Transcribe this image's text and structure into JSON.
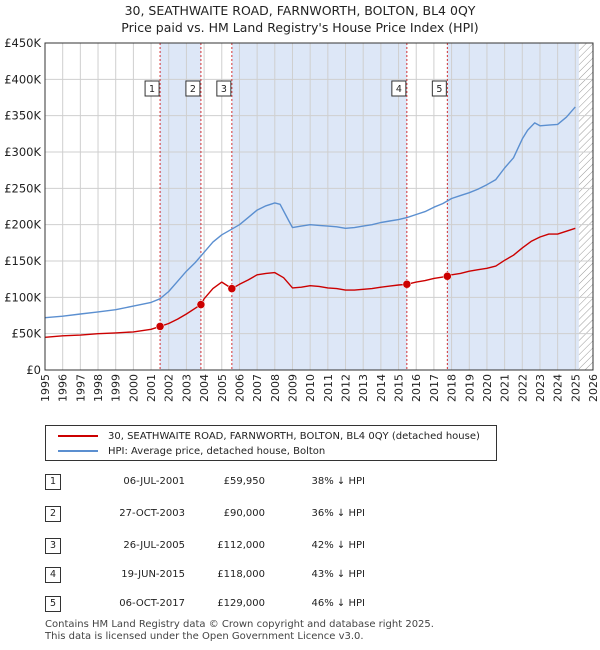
{
  "title_line1": "30, SEATHWAITE ROAD, FARNWORTH, BOLTON, BL4 0QY",
  "title_line2": "Price paid vs. HM Land Registry's House Price Index (HPI)",
  "colors": {
    "property": "#cc0000",
    "hpi": "#5b8fd0",
    "shade": "#dde7f7",
    "grid": "#cfcfcf",
    "marker_line": "#cc0000"
  },
  "chart_data": {
    "type": "line",
    "xlim": [
      1995,
      2026
    ],
    "ylim": [
      0,
      450000
    ],
    "yticks": [
      0,
      50000,
      100000,
      150000,
      200000,
      250000,
      300000,
      350000,
      400000,
      450000
    ],
    "ytick_labels": [
      "£0",
      "£50K",
      "£100K",
      "£150K",
      "£200K",
      "£250K",
      "£300K",
      "£350K",
      "£400K",
      "£450K"
    ],
    "xticks": [
      1995,
      1996,
      1997,
      1998,
      1999,
      2000,
      2001,
      2002,
      2003,
      2004,
      2005,
      2006,
      2007,
      2008,
      2009,
      2010,
      2011,
      2012,
      2013,
      2014,
      2015,
      2016,
      2017,
      2018,
      2019,
      2020,
      2021,
      2022,
      2023,
      2024,
      2025,
      2026
    ],
    "shaded_ranges": [
      [
        2001.51,
        2003.82
      ],
      [
        2005.57,
        2015.47
      ],
      [
        2017.76,
        2025.2
      ]
    ],
    "hatch_from": 2025.2,
    "series": [
      {
        "name": "30, SEATHWAITE ROAD, FARNWORTH, BOLTON, BL4 0QY (detached house)",
        "color": "#cc0000",
        "x": [
          1995,
          1996,
          1997,
          1998,
          1999,
          2000,
          2001,
          2001.51,
          2002,
          2002.5,
          2003,
          2003.82,
          2004,
          2004.5,
          2005,
          2005.57,
          2006,
          2006.5,
          2007,
          2007.5,
          2008,
          2008.5,
          2009,
          2009.5,
          2010,
          2010.5,
          2011,
          2011.5,
          2012,
          2012.5,
          2013,
          2013.5,
          2014,
          2014.5,
          2015,
          2015.47,
          2016,
          2016.5,
          2017,
          2017.76,
          2018,
          2018.5,
          2019,
          2019.5,
          2020,
          2020.5,
          2021,
          2021.5,
          2022,
          2022.5,
          2023,
          2023.5,
          2024,
          2024.5,
          2025
        ],
        "values": [
          45000,
          47000,
          48000,
          50000,
          51000,
          52500,
          56000,
          59950,
          64000,
          70000,
          77000,
          90000,
          98000,
          112000,
          121000,
          112000,
          118000,
          124000,
          131000,
          133000,
          134000,
          127000,
          113000,
          114000,
          116000,
          115000,
          113000,
          112000,
          110000,
          110000,
          111000,
          112000,
          114000,
          115500,
          117000,
          118000,
          121000,
          123000,
          126000,
          129000,
          131000,
          133000,
          136000,
          138000,
          140000,
          143000,
          151000,
          158000,
          168000,
          177000,
          183000,
          187000,
          187000,
          191000,
          195000
        ]
      },
      {
        "name": "HPI: Average price, detached house, Bolton",
        "color": "#5b8fd0",
        "x": [
          1995,
          1996,
          1997,
          1998,
          1999,
          2000,
          2001,
          2001.5,
          2002,
          2002.5,
          2003,
          2003.5,
          2004,
          2004.5,
          2005,
          2005.5,
          2006,
          2006.5,
          2007,
          2007.5,
          2008,
          2008.3,
          2008.8,
          2009,
          2009.5,
          2010,
          2010.5,
          2011,
          2011.5,
          2012,
          2012.5,
          2013,
          2013.5,
          2014,
          2014.5,
          2015,
          2015.5,
          2016,
          2016.5,
          2017,
          2017.5,
          2018,
          2018.5,
          2019,
          2019.5,
          2020,
          2020.5,
          2021,
          2021.5,
          2022,
          2022.3,
          2022.7,
          2023,
          2023.5,
          2024,
          2024.5,
          2025
        ],
        "values": [
          72000,
          74000,
          77000,
          80000,
          83000,
          88000,
          93000,
          98000,
          108000,
          122000,
          136000,
          148000,
          162000,
          176000,
          186000,
          193000,
          200000,
          210000,
          220000,
          226000,
          230000,
          228000,
          205000,
          196000,
          198000,
          200000,
          199000,
          198000,
          197000,
          195000,
          196000,
          198000,
          200000,
          203000,
          205000,
          207000,
          210000,
          214000,
          218000,
          224000,
          229000,
          236000,
          240000,
          244000,
          249000,
          255000,
          262000,
          278000,
          292000,
          318000,
          330000,
          340000,
          336000,
          337000,
          338000,
          348000,
          362000
        ]
      }
    ],
    "sales": [
      {
        "label": "1",
        "x": 2001.51,
        "value": 59950
      },
      {
        "label": "2",
        "x": 2003.82,
        "value": 90000
      },
      {
        "label": "3",
        "x": 2005.57,
        "value": 112000
      },
      {
        "label": "4",
        "x": 2015.47,
        "value": 118000
      },
      {
        "label": "5",
        "x": 2017.76,
        "value": 129000
      }
    ]
  },
  "legend": {
    "property_label": "30, SEATHWAITE ROAD, FARNWORTH, BOLTON, BL4 0QY (detached house)",
    "hpi_label": "HPI: Average price, detached house, Bolton"
  },
  "transactions": [
    {
      "num": "1",
      "date": "06-JUL-2001",
      "price": "£59,950",
      "hpi": "38% ↓ HPI"
    },
    {
      "num": "2",
      "date": "27-OCT-2003",
      "price": "£90,000",
      "hpi": "36% ↓ HPI"
    },
    {
      "num": "3",
      "date": "26-JUL-2005",
      "price": "£112,000",
      "hpi": "42% ↓ HPI"
    },
    {
      "num": "4",
      "date": "19-JUN-2015",
      "price": "£118,000",
      "hpi": "43% ↓ HPI"
    },
    {
      "num": "5",
      "date": "06-OCT-2017",
      "price": "£129,000",
      "hpi": "46% ↓ HPI"
    }
  ],
  "footer": {
    "line1": "Contains HM Land Registry data © Crown copyright and database right 2025.",
    "line2": "This data is licensed under the Open Government Licence v3.0."
  }
}
